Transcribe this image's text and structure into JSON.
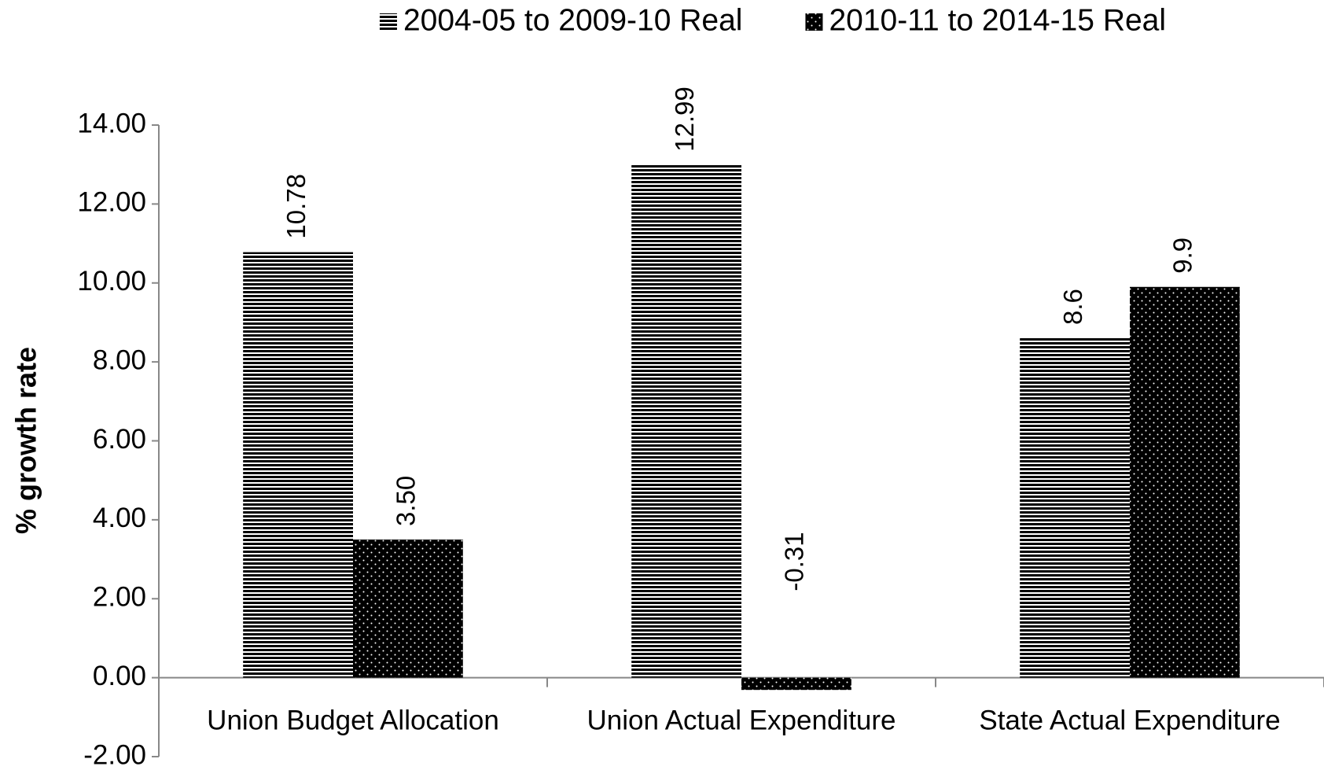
{
  "chart_data": {
    "type": "bar",
    "y_label": "% growth rate",
    "categories": [
      "Union Budget Allocation",
      "Union Actual Expenditure",
      "State Actual Expenditure"
    ],
    "series": [
      {
        "name": "2004-05 to 2009-10 Real",
        "color": "#000000",
        "pattern": "horizontal-lines",
        "values": [
          10.78,
          12.99,
          8.6
        ]
      },
      {
        "name": "2010-11 to 2014-15 Real",
        "color": "#000000",
        "pattern": "dots",
        "values": [
          3.5,
          -0.31,
          9.9
        ],
        "value_labels": [
          "3.50",
          "-0.31",
          "9.9"
        ]
      }
    ],
    "ylim": [
      -2,
      14
    ],
    "yticks": [
      {
        "value": -2,
        "label": "-2.00"
      },
      {
        "value": 0,
        "label": "0.00"
      },
      {
        "value": 2,
        "label": "2.00"
      },
      {
        "value": 4,
        "label": "4.00"
      },
      {
        "value": 6,
        "label": "6.00"
      },
      {
        "value": 8,
        "label": "8.00"
      },
      {
        "value": 10,
        "label": "10.00"
      },
      {
        "value": 12,
        "label": "12.00"
      },
      {
        "value": 14,
        "label": "14.00"
      }
    ],
    "legend": "top",
    "grid": false
  }
}
